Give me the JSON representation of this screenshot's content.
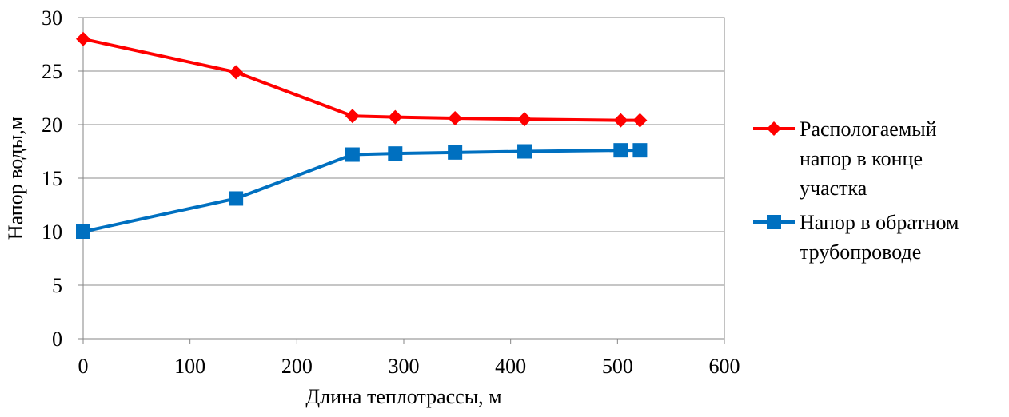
{
  "chart_data": {
    "type": "line",
    "xlabel": "Длина теплотрассы, м",
    "ylabel": "Напор воды,м",
    "xlim": [
      0,
      600
    ],
    "ylim": [
      0,
      30
    ],
    "x_ticks": [
      0,
      100,
      200,
      300,
      400,
      500,
      600
    ],
    "y_ticks": [
      0,
      5,
      10,
      15,
      20,
      25,
      30
    ],
    "grid": "horizontal",
    "legend": "right",
    "series": [
      {
        "name": "Распологаемый напор в конце участка",
        "name_lines": [
          "Распологаемый",
          "напор в конце",
          "участка"
        ],
        "color": "#ff0000",
        "marker": "diamond",
        "x": [
          0,
          143,
          252,
          292,
          348,
          413,
          503,
          521
        ],
        "y": [
          28.0,
          24.9,
          20.8,
          20.7,
          20.6,
          20.5,
          20.4,
          20.4
        ]
      },
      {
        "name": "Напор в обратном трубопроводе",
        "name_lines": [
          "Напор в обратном",
          "трубопроводе"
        ],
        "color": "#0070c0",
        "marker": "square",
        "x": [
          0,
          143,
          252,
          292,
          348,
          413,
          503,
          521
        ],
        "y": [
          10.0,
          13.1,
          17.2,
          17.3,
          17.4,
          17.5,
          17.6,
          17.6
        ]
      }
    ]
  }
}
